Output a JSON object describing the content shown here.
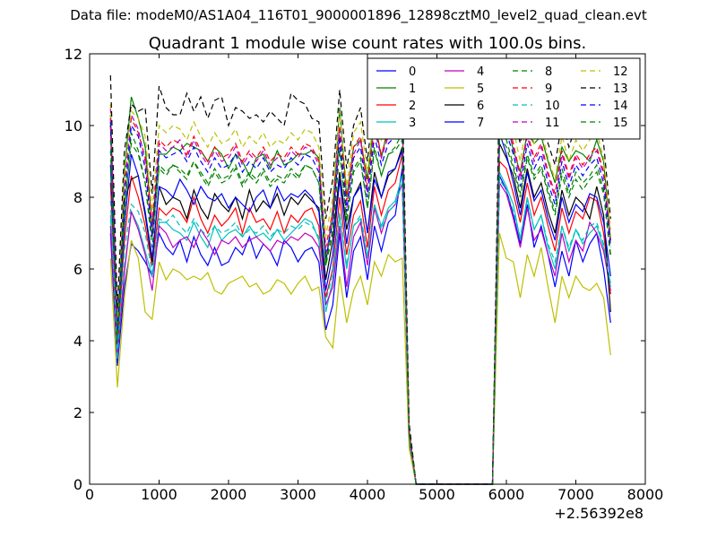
{
  "figure": {
    "suptitle": "Data file: modeM0/AS1A04_116T01_9000001896_12898cztM0_level2_quad_clean.evt"
  },
  "chart_data": {
    "type": "line",
    "title": "Quadrant 1 module wise count rates with 100.0s bins.",
    "xlabel": "",
    "ylabel": "",
    "x_offset_label": "+2.56392e8",
    "xlim": [
      0,
      8000
    ],
    "ylim": [
      0,
      12
    ],
    "xticks": [
      0,
      1000,
      2000,
      3000,
      4000,
      5000,
      6000,
      7000,
      8000
    ],
    "yticks": [
      0,
      2,
      4,
      6,
      8,
      10,
      12
    ],
    "grid": false,
    "legend": {
      "position": "top-right",
      "columns": 4
    },
    "x": [
      300,
      400,
      500,
      600,
      700,
      800,
      900,
      1000,
      1100,
      1200,
      1300,
      1400,
      1500,
      1600,
      1700,
      1800,
      1900,
      2000,
      2100,
      2200,
      2300,
      2400,
      2500,
      2600,
      2700,
      2800,
      2900,
      3000,
      3100,
      3200,
      3300,
      3400,
      3500,
      3600,
      3700,
      3800,
      3900,
      4000,
      4100,
      4200,
      4300,
      4400,
      4500,
      4600,
      4700,
      5800,
      5900,
      6000,
      6100,
      6200,
      6300,
      6400,
      6500,
      6600,
      6700,
      6800,
      6900,
      7000,
      7100,
      7200,
      7300,
      7400,
      7500
    ],
    "series": [
      {
        "name": "0",
        "color": "#0000ff",
        "dash": "solid",
        "values": [
          7.0,
          3.3,
          5.5,
          6.7,
          6.5,
          6.2,
          5.8,
          7.0,
          6.6,
          6.4,
          6.8,
          6.2,
          6.9,
          6.4,
          6.1,
          6.6,
          6.1,
          6.2,
          6.6,
          6.4,
          6.9,
          6.3,
          6.7,
          6.5,
          6.1,
          6.8,
          6.6,
          6.2,
          6.5,
          6.6,
          6.2,
          4.3,
          5.0,
          7.0,
          5.2,
          6.5,
          6.9,
          5.7,
          7.2,
          6.5,
          7.3,
          7.5,
          8.8,
          1.2,
          0,
          0,
          8.6,
          8.2,
          7.5,
          6.7,
          7.8,
          6.6,
          7.2,
          6.4,
          5.5,
          6.5,
          5.8,
          6.8,
          6.2,
          6.7,
          7.0,
          6.0,
          4.5
        ]
      },
      {
        "name": "1",
        "color": "#008000",
        "dash": "solid",
        "values": [
          10.3,
          4.0,
          8.7,
          10.8,
          10.2,
          9.4,
          7.2,
          9.2,
          9.2,
          9.4,
          9.3,
          9.5,
          9.4,
          9.3,
          9.0,
          9.4,
          9.2,
          8.8,
          9.2,
          9.0,
          8.6,
          9.1,
          9.2,
          8.8,
          9.3,
          8.9,
          9.0,
          9.2,
          9.2,
          9.3,
          9.1,
          6.1,
          7.7,
          10.5,
          8.0,
          9.4,
          9.6,
          8.5,
          10.2,
          9.1,
          10.0,
          10.3,
          10.5,
          1.5,
          0,
          0,
          10.6,
          10.2,
          9.3,
          8.7,
          9.8,
          9.5,
          9.7,
          9.0,
          8.4,
          9.4,
          9.0,
          9.3,
          9.2,
          9.0,
          9.6,
          9.0,
          6.8
        ]
      },
      {
        "name": "2",
        "color": "#ff0000",
        "dash": "solid",
        "values": [
          8.4,
          3.8,
          6.8,
          8.6,
          8.0,
          7.2,
          6.1,
          7.7,
          7.5,
          7.7,
          7.6,
          7.3,
          8.0,
          7.4,
          7.0,
          7.5,
          7.2,
          7.4,
          7.7,
          7.0,
          7.7,
          7.3,
          7.4,
          7.1,
          7.6,
          7.0,
          7.5,
          7.3,
          7.6,
          7.7,
          7.2,
          5.2,
          6.0,
          8.0,
          6.4,
          7.5,
          7.9,
          6.6,
          8.3,
          7.5,
          8.2,
          8.4,
          9.2,
          1.3,
          0,
          0,
          9.0,
          8.8,
          8.1,
          7.3,
          8.4,
          7.5,
          8.0,
          7.2,
          6.5,
          7.7,
          7.0,
          7.6,
          7.4,
          8.0,
          7.9,
          7.0,
          5.3
        ]
      },
      {
        "name": "3",
        "color": "#00bfbf",
        "dash": "solid",
        "values": [
          7.5,
          3.5,
          6.0,
          7.6,
          7.2,
          6.5,
          5.8,
          7.3,
          7.3,
          7.1,
          7.0,
          6.8,
          7.3,
          6.9,
          6.6,
          7.2,
          6.8,
          7.0,
          7.1,
          6.9,
          7.2,
          6.9,
          7.0,
          6.8,
          7.1,
          6.8,
          7.0,
          7.2,
          7.4,
          7.3,
          6.8,
          4.8,
          5.7,
          7.5,
          6.0,
          7.2,
          7.4,
          6.3,
          7.8,
          7.2,
          7.7,
          7.9,
          8.6,
          1.3,
          0,
          0,
          8.7,
          8.3,
          7.8,
          6.8,
          8.0,
          7.1,
          7.5,
          6.6,
          6.0,
          7.2,
          6.5,
          7.1,
          6.7,
          7.0,
          7.2,
          6.6,
          5.6
        ]
      },
      {
        "name": "4",
        "color": "#bf00bf",
        "dash": "solid",
        "values": [
          7.2,
          3.6,
          5.9,
          7.6,
          7.1,
          6.4,
          5.4,
          7.2,
          7.0,
          6.6,
          6.8,
          6.9,
          6.6,
          7.1,
          6.8,
          6.4,
          6.8,
          6.7,
          6.9,
          6.6,
          6.8,
          6.9,
          6.7,
          6.5,
          6.8,
          6.7,
          6.9,
          6.8,
          7.0,
          6.9,
          6.6,
          5.0,
          5.5,
          7.2,
          5.5,
          6.9,
          7.3,
          6.1,
          7.7,
          7.0,
          7.6,
          7.8,
          8.4,
          1.3,
          0,
          0,
          8.4,
          8.1,
          7.4,
          6.6,
          7.7,
          6.8,
          7.1,
          6.4,
          5.8,
          7.0,
          6.2,
          6.8,
          6.5,
          7.3,
          7.0,
          6.5,
          5.4
        ]
      },
      {
        "name": "5",
        "color": "#bfbf00",
        "dash": "solid",
        "values": [
          6.3,
          2.7,
          5.2,
          6.8,
          6.3,
          4.8,
          4.6,
          6.2,
          5.7,
          6.0,
          5.9,
          5.7,
          5.8,
          5.7,
          5.9,
          5.4,
          5.3,
          5.6,
          5.7,
          5.8,
          5.5,
          5.6,
          5.3,
          5.4,
          5.7,
          5.6,
          5.3,
          5.6,
          5.8,
          5.4,
          5.5,
          4.1,
          3.8,
          5.8,
          4.5,
          5.4,
          5.8,
          5.0,
          6.2,
          5.8,
          6.4,
          6.2,
          6.3,
          1.0,
          0,
          0,
          7.0,
          6.3,
          6.2,
          5.2,
          6.4,
          5.8,
          6.6,
          5.5,
          4.5,
          5.8,
          5.2,
          5.8,
          5.5,
          5.4,
          5.6,
          5.2,
          3.6
        ]
      },
      {
        "name": "6",
        "color": "#000000",
        "dash": "solid",
        "values": [
          10.0,
          4.2,
          7.9,
          8.5,
          8.6,
          7.5,
          6.2,
          8.3,
          7.8,
          8.0,
          7.9,
          7.4,
          8.2,
          7.7,
          7.4,
          8.1,
          7.8,
          7.6,
          8.0,
          7.4,
          8.2,
          7.6,
          7.9,
          7.7,
          8.1,
          7.5,
          8.0,
          7.8,
          8.1,
          7.9,
          7.7,
          5.7,
          6.8,
          8.7,
          7.1,
          8.0,
          8.4,
          7.0,
          8.7,
          8.0,
          8.6,
          8.8,
          9.4,
          1.5,
          0,
          0,
          9.5,
          9.1,
          8.6,
          7.7,
          8.8,
          8.0,
          8.4,
          7.6,
          7.0,
          8.2,
          7.5,
          8.0,
          7.8,
          7.4,
          8.3,
          7.5,
          4.8
        ]
      },
      {
        "name": "7",
        "color": "#0000ff",
        "dash": "solid",
        "values": [
          8.9,
          4.1,
          7.2,
          9.2,
          8.6,
          7.6,
          6.3,
          8.3,
          8.2,
          8.0,
          8.5,
          8.2,
          7.8,
          8.3,
          8.0,
          7.9,
          8.1,
          7.7,
          8.0,
          7.8,
          7.6,
          8.0,
          8.2,
          7.7,
          8.3,
          7.9,
          8.1,
          8.0,
          8.2,
          8.0,
          7.6,
          5.4,
          6.4,
          8.5,
          6.7,
          8.0,
          8.3,
          7.0,
          8.5,
          8.0,
          8.7,
          8.8,
          9.3,
          1.4,
          0,
          0,
          9.8,
          9.2,
          8.4,
          7.5,
          8.7,
          7.9,
          8.2,
          7.4,
          6.8,
          8.0,
          7.3,
          7.8,
          7.6,
          8.1,
          8.0,
          7.3,
          5.8
        ]
      },
      {
        "name": "8",
        "color": "#008000",
        "dash": "dashed",
        "values": [
          9.3,
          3.9,
          7.5,
          9.8,
          9.3,
          8.4,
          6.9,
          8.8,
          8.6,
          8.9,
          8.7,
          8.5,
          9.0,
          8.6,
          8.3,
          8.7,
          8.4,
          8.5,
          8.8,
          8.3,
          8.6,
          8.4,
          8.7,
          8.3,
          8.5,
          8.4,
          8.7,
          8.5,
          8.9,
          8.8,
          8.4,
          6.2,
          7.1,
          9.4,
          7.4,
          8.8,
          9.1,
          7.7,
          9.4,
          8.6,
          9.2,
          9.4,
          9.8,
          1.4,
          0,
          0,
          9.9,
          9.6,
          8.9,
          8.1,
          9.2,
          8.6,
          8.9,
          8.2,
          7.6,
          8.8,
          8.1,
          8.7,
          8.4,
          8.6,
          8.9,
          8.2,
          6.4
        ]
      },
      {
        "name": "9",
        "color": "#ff0000",
        "dash": "dashed",
        "values": [
          10.2,
          4.4,
          8.4,
          10.2,
          9.8,
          9.1,
          7.3,
          9.6,
          9.4,
          9.6,
          9.5,
          9.2,
          9.7,
          9.3,
          9.0,
          9.4,
          9.1,
          9.2,
          9.5,
          9.0,
          9.3,
          9.1,
          9.4,
          9.0,
          9.2,
          9.1,
          9.4,
          9.2,
          9.5,
          9.4,
          9.0,
          6.6,
          7.6,
          10.0,
          7.9,
          9.4,
          9.7,
          8.3,
          10.0,
          9.2,
          9.8,
          10.0,
          10.3,
          1.5,
          0,
          0,
          10.6,
          10.2,
          9.5,
          8.6,
          9.8,
          9.1,
          9.5,
          8.7,
          8.1,
          9.3,
          8.6,
          9.2,
          8.9,
          9.2,
          9.4,
          8.7,
          6.8
        ]
      },
      {
        "name": "10",
        "color": "#00bfbf",
        "dash": "dashed",
        "values": [
          7.9,
          3.6,
          6.5,
          7.8,
          7.6,
          7.0,
          5.9,
          7.4,
          7.3,
          7.5,
          7.2,
          7.0,
          7.4,
          7.1,
          6.9,
          7.2,
          7.0,
          7.1,
          7.3,
          6.9,
          7.1,
          7.0,
          7.2,
          6.9,
          7.1,
          7.0,
          7.2,
          7.1,
          7.3,
          7.2,
          6.9,
          5.1,
          5.9,
          7.6,
          6.1,
          7.2,
          7.5,
          6.4,
          7.8,
          7.1,
          7.6,
          7.8,
          8.4,
          1.3,
          0,
          0,
          8.5,
          8.2,
          7.6,
          6.9,
          7.9,
          7.1,
          7.5,
          6.7,
          6.2,
          7.2,
          6.6,
          7.1,
          6.8,
          7.2,
          7.3,
          6.7,
          5.5
        ]
      },
      {
        "name": "11",
        "color": "#bf00bf",
        "dash": "dashed",
        "values": [
          10.5,
          4.3,
          8.1,
          10.3,
          9.9,
          9.0,
          7.0,
          9.5,
          9.3,
          9.4,
          9.6,
          9.1,
          9.6,
          9.2,
          8.9,
          9.3,
          9.0,
          9.1,
          9.4,
          8.9,
          9.2,
          9.0,
          9.3,
          8.9,
          9.1,
          9.0,
          9.3,
          9.1,
          9.4,
          9.3,
          8.9,
          6.4,
          7.4,
          9.9,
          7.7,
          9.2,
          9.6,
          8.1,
          9.9,
          9.1,
          9.7,
          9.9,
          10.2,
          1.4,
          0,
          0,
          10.3,
          10.0,
          9.4,
          8.5,
          9.7,
          9.0,
          9.4,
          8.6,
          8.0,
          9.2,
          8.5,
          9.1,
          8.8,
          9.1,
          9.3,
          8.6,
          6.7
        ]
      },
      {
        "name": "12",
        "color": "#bfbf00",
        "dash": "dashed",
        "values": [
          10.6,
          4.5,
          8.6,
          10.4,
          10.2,
          9.7,
          7.6,
          10.0,
          9.8,
          10.0,
          9.9,
          9.6,
          10.1,
          9.7,
          9.4,
          9.8,
          9.5,
          9.6,
          9.9,
          9.4,
          9.7,
          9.5,
          9.8,
          9.4,
          9.6,
          9.5,
          9.8,
          9.6,
          9.9,
          9.8,
          9.4,
          6.9,
          8.0,
          10.4,
          8.3,
          9.8,
          10.1,
          8.7,
          10.4,
          9.6,
          10.2,
          10.4,
          10.8,
          1.6,
          0,
          0,
          11.0,
          10.6,
          9.9,
          9.0,
          10.2,
          9.5,
          9.9,
          9.1,
          8.5,
          9.7,
          9.0,
          9.6,
          9.3,
          9.6,
          9.8,
          9.1,
          7.1
        ]
      },
      {
        "name": "13",
        "color": "#000000",
        "dash": "dashed",
        "values": [
          11.4,
          4.9,
          9.3,
          10.6,
          10.4,
          10.5,
          8.1,
          11.1,
          10.5,
          10.3,
          10.3,
          10.9,
          10.4,
          10.8,
          10.2,
          10.7,
          10.8,
          10.0,
          10.5,
          10.4,
          10.2,
          10.3,
          10.1,
          10.4,
          10.2,
          10.0,
          10.9,
          10.7,
          10.6,
          10.2,
          10.1,
          7.4,
          8.5,
          11.0,
          8.8,
          10.0,
          10.5,
          9.0,
          10.9,
          10.1,
          10.6,
          10.8,
          11.1,
          1.7,
          0,
          0,
          11.4,
          11.0,
          10.3,
          9.5,
          10.6,
          9.9,
          10.3,
          9.5,
          8.9,
          10.1,
          9.4,
          10.0,
          9.7,
          10.0,
          10.2,
          9.5,
          7.4
        ]
      },
      {
        "name": "14",
        "color": "#0000ff",
        "dash": "dashed",
        "values": [
          10.1,
          4.2,
          8.0,
          10.0,
          9.7,
          8.8,
          6.9,
          9.3,
          9.1,
          9.2,
          9.3,
          9.0,
          9.4,
          9.0,
          8.7,
          9.1,
          8.8,
          8.9,
          9.2,
          8.7,
          9.0,
          8.8,
          9.1,
          8.7,
          8.9,
          8.8,
          9.1,
          8.9,
          9.2,
          9.1,
          8.7,
          6.3,
          7.3,
          9.7,
          7.6,
          9.1,
          9.4,
          8.0,
          9.7,
          8.9,
          9.5,
          9.7,
          10.0,
          1.4,
          0,
          0,
          10.1,
          9.8,
          9.2,
          8.3,
          9.5,
          8.8,
          9.2,
          8.4,
          7.8,
          9.0,
          8.3,
          8.9,
          8.6,
          8.9,
          9.1,
          8.4,
          6.6
        ]
      },
      {
        "name": "15",
        "color": "#008000",
        "dash": "dashed",
        "values": [
          9.6,
          4.0,
          7.7,
          9.5,
          9.2,
          8.4,
          6.6,
          8.9,
          8.7,
          8.9,
          8.8,
          8.6,
          9.0,
          8.7,
          8.4,
          8.8,
          8.5,
          8.6,
          8.9,
          8.4,
          8.7,
          8.5,
          8.8,
          8.4,
          8.6,
          8.5,
          8.8,
          8.6,
          8.9,
          8.8,
          8.4,
          6.1,
          7.0,
          9.3,
          7.3,
          8.7,
          9.0,
          7.7,
          9.3,
          8.6,
          9.2,
          9.3,
          9.6,
          1.4,
          0,
          0,
          9.7,
          9.4,
          8.8,
          8.0,
          9.1,
          8.5,
          8.8,
          8.1,
          7.5,
          8.6,
          8.0,
          8.5,
          8.2,
          8.5,
          8.7,
          8.1,
          6.3
        ]
      }
    ]
  }
}
